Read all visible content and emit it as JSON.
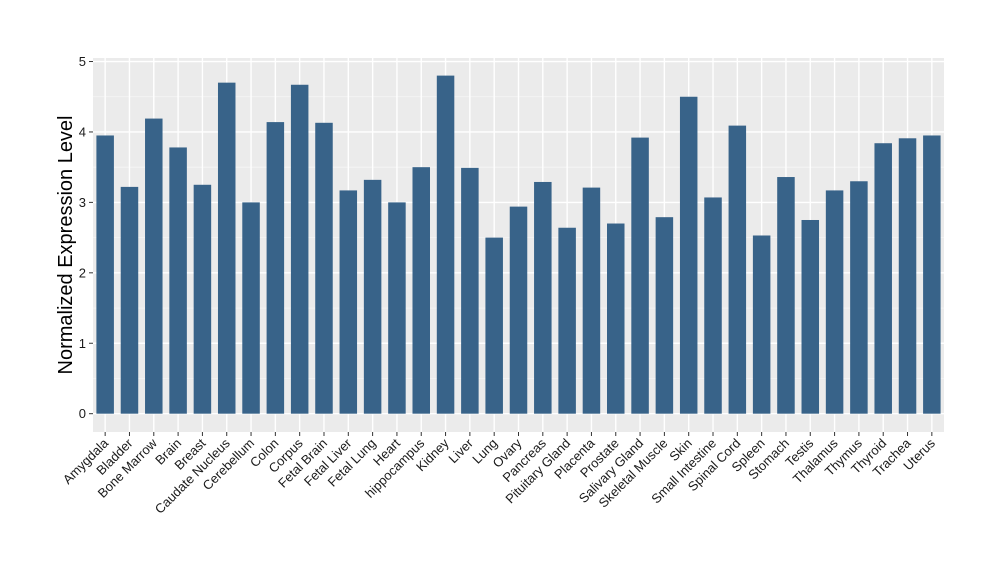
{
  "colors": {
    "bar": "#386389",
    "panel_background": "#EBEBEB",
    "grid_major": "#FFFFFF",
    "grid_minor": "#F5F5F5",
    "text": "#1A1A1A"
  },
  "chart_data": {
    "type": "bar",
    "title": "",
    "xlabel": "",
    "ylabel": "Normalized Expression Level",
    "ylim": [
      -0.26,
      5.05
    ],
    "yticks": [
      0,
      1,
      2,
      3,
      4,
      5
    ],
    "grid": true,
    "legend": "none",
    "categories": [
      "Amygdala",
      "Bladder",
      "Bone Marrow",
      "Brain",
      "Breast",
      "Caudate Nucleus",
      "Cerebellum",
      "Colon",
      "Corpus",
      "Fetal Brain",
      "Fetal Liver",
      "Fetal Lung",
      "Heart",
      "hippocampus",
      "Kidney",
      "Liver",
      "Lung",
      "Ovary",
      "Pancreas",
      "Pituitary Gland",
      "Placenta",
      "Prostate",
      "Salivary Gland",
      "Skeletal Muscle",
      "Skin",
      "Small Intestine",
      "Spinal Cord",
      "Spleen",
      "Stomach",
      "Testis",
      "Thalamus",
      "Thymus",
      "Thyroid",
      "Trachea",
      "Uterus"
    ],
    "values": [
      3.95,
      3.22,
      4.19,
      3.78,
      3.25,
      4.7,
      3.0,
      4.14,
      4.67,
      4.13,
      3.17,
      3.32,
      3.0,
      3.5,
      4.8,
      3.49,
      2.5,
      2.94,
      3.29,
      2.64,
      3.21,
      2.7,
      3.92,
      2.79,
      4.5,
      3.07,
      4.09,
      2.53,
      3.36,
      2.75,
      3.17,
      3.3,
      3.84,
      3.91,
      3.95
    ]
  }
}
